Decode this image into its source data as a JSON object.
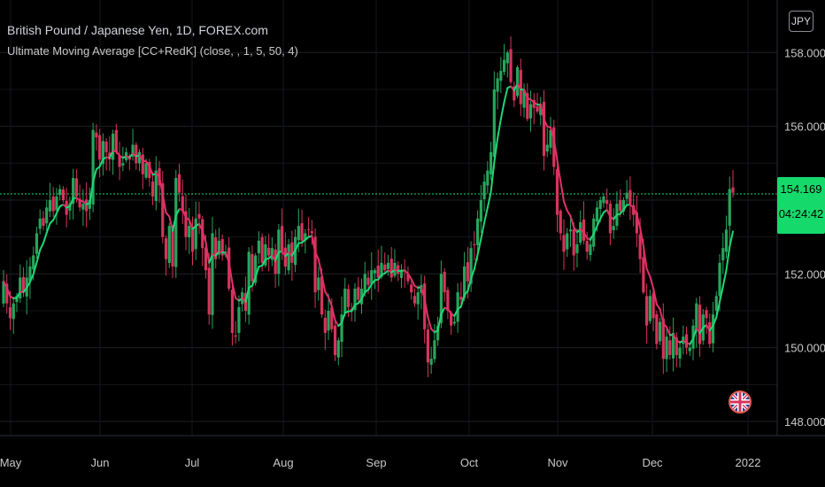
{
  "header": {
    "symbol_title": "British Pound / Japanese Yen, 1D, FOREX.com",
    "indicator_title": "Ultimate Moving Average [CC+RedK] (close, , 1, 5, 50, 4)",
    "currency": "JPY"
  },
  "price_tag": {
    "price": "154.169",
    "countdown": "04:24:42"
  },
  "flag_icon": "uk-flag-icon",
  "colors": {
    "up": "#26a65b",
    "down": "#d6345c",
    "ma_up": "#1fd675",
    "ma_down": "#e0306a",
    "tag": "#16d96b"
  },
  "chart_data": {
    "type": "candlestick",
    "y_axis": {
      "ticks": [
        158,
        156,
        154,
        152,
        150,
        148
      ],
      "tick_labels": [
        "158.000",
        "156.000",
        "154.000",
        "152.000",
        "150.000",
        "148.000"
      ],
      "ylim": [
        147.3,
        158.5
      ]
    },
    "x_axis": {
      "tick_labels": [
        "May",
        "Jun",
        "Jul",
        "Aug",
        "Sep",
        "Oct",
        "Nov",
        "Dec",
        "2022"
      ]
    },
    "last_price": 154.169,
    "grid": true,
    "series_close": [
      151.8,
      151.2,
      150.8,
      151.2,
      151.4,
      151.9,
      151.5,
      151.9,
      152.2,
      152.5,
      153.1,
      153.5,
      153.3,
      153.8,
      154.0,
      153.7,
      154.1,
      154.3,
      154.0,
      153.6,
      153.9,
      154.6,
      154.1,
      153.8,
      153.9,
      153.7,
      154.0,
      155.9,
      155.7,
      155.1,
      155.6,
      155.3,
      155.1,
      155.8,
      155.3,
      154.9,
      155.0,
      155.3,
      155.1,
      155.5,
      155.0,
      155.3,
      154.7,
      155.0,
      154.6,
      154.1,
      154.8,
      154.4,
      153.0,
      152.4,
      153.3,
      152.2,
      154.6,
      154.2,
      153.7,
      153.0,
      153.3,
      152.6,
      153.5,
      153.5,
      152.7,
      152.1,
      150.9,
      153.1,
      152.4,
      152.9,
      152.5,
      152.6,
      151.6,
      150.4,
      150.3,
      151.1,
      151.5,
      151.0,
      152.6,
      151.8,
      152.5,
      152.9,
      152.3,
      152.8,
      152.5,
      152.7,
      152.0,
      153.2,
      152.6,
      152.2,
      152.8,
      152.3,
      153.0,
      153.3,
      152.9,
      153.1,
      153.2,
      153.1,
      151.5,
      151.9,
      150.9,
      150.4,
      151.0,
      150.5,
      149.8,
      150.2,
      150.9,
      151.6,
      151.1,
      151.0,
      151.6,
      151.3,
      151.6,
      152.0,
      151.7,
      152.1,
      152.1,
      151.9,
      152.3,
      152.1,
      152.3,
      151.9,
      152.3,
      152.0,
      152.1,
      152.1,
      151.8,
      151.5,
      151.2,
      151.5,
      151.7,
      150.5,
      149.6,
      149.7,
      150.2,
      150.6,
      152.0,
      151.5,
      151.0,
      150.6,
      150.7,
      151.5,
      151.3,
      152.2,
      151.8,
      152.7,
      152.8,
      153.5,
      154.0,
      154.5,
      154.8,
      155.3,
      157.0,
      157.3,
      157.5,
      157.8,
      158.0,
      157.2,
      156.7,
      157.6,
      156.6,
      157.0,
      156.2,
      156.6,
      156.5,
      156.4,
      156.6,
      155.2,
      155.5,
      155.9,
      154.9,
      153.6,
      153.1,
      152.6,
      153.1,
      153.2,
      152.5,
      152.8,
      153.4,
      152.9,
      152.6,
      152.8,
      153.5,
      153.8,
      154.0,
      154.1,
      153.9,
      153.1,
      153.3,
      153.9,
      153.7,
      154.0,
      154.2,
      153.9,
      153.6,
      153.1,
      152.4,
      151.5,
      150.6,
      151.4,
      150.8,
      150.1,
      150.7,
      149.7,
      150.3,
      149.8,
      150.4,
      149.8,
      150.0,
      150.3,
      150.0,
      150.0,
      150.6,
      151.2,
      150.1,
      150.9,
      150.8,
      150.1,
      150.9,
      151.4,
      152.3,
      152.7,
      153.2,
      154.3,
      154.2
    ]
  }
}
